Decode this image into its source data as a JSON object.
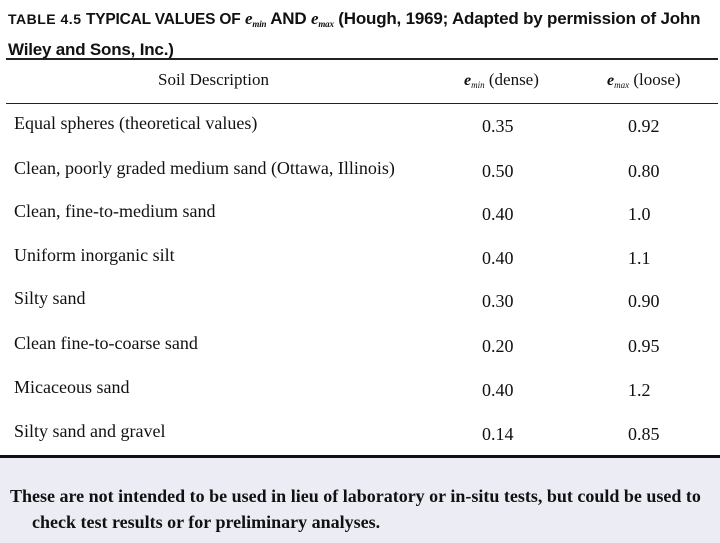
{
  "caption": {
    "table_no": "TABLE 4.5",
    "prefix": "TYPICAL VALUES OF",
    "emin_symbol": "e",
    "emin_sub": "min",
    "and_text": "AND",
    "emax_symbol": "e",
    "emax_sub": "max",
    "rest": "(Hough, 1969; Adapted by permission of John Wiley and Sons, Inc.)"
  },
  "columns": {
    "desc": "Soil Description",
    "emin_symbol": "e",
    "emin_sub": "min",
    "emin_label": "(dense)",
    "emax_symbol": "e",
    "emax_sub": "max",
    "emax_label": "(loose)"
  },
  "rows": [
    {
      "desc": "Equal spheres (theoretical values)",
      "emin": "0.35",
      "emax": "0.92"
    },
    {
      "desc": "Clean, poorly graded medium sand (Ottawa, Illinois)",
      "emin": "0.50",
      "emax": "0.80"
    },
    {
      "desc": "Clean, fine-to-medium sand",
      "emin": "0.40",
      "emax": "1.0"
    },
    {
      "desc": "Uniform inorganic silt",
      "emin": "0.40",
      "emax": "1.1"
    },
    {
      "desc": "Silty sand",
      "emin": "0.30",
      "emax": "0.90"
    },
    {
      "desc": "Clean fine-to-coarse sand",
      "emin": "0.20",
      "emax": "0.95"
    },
    {
      "desc": "Micaceous sand",
      "emin": "0.40",
      "emax": "1.2"
    },
    {
      "desc": "Silty sand and gravel",
      "emin": "0.14",
      "emax": "0.85"
    }
  ],
  "footer": "These are not intended to be used in lieu of laboratory or in-situ tests, but could be used to check test results or for preliminary analyses."
}
